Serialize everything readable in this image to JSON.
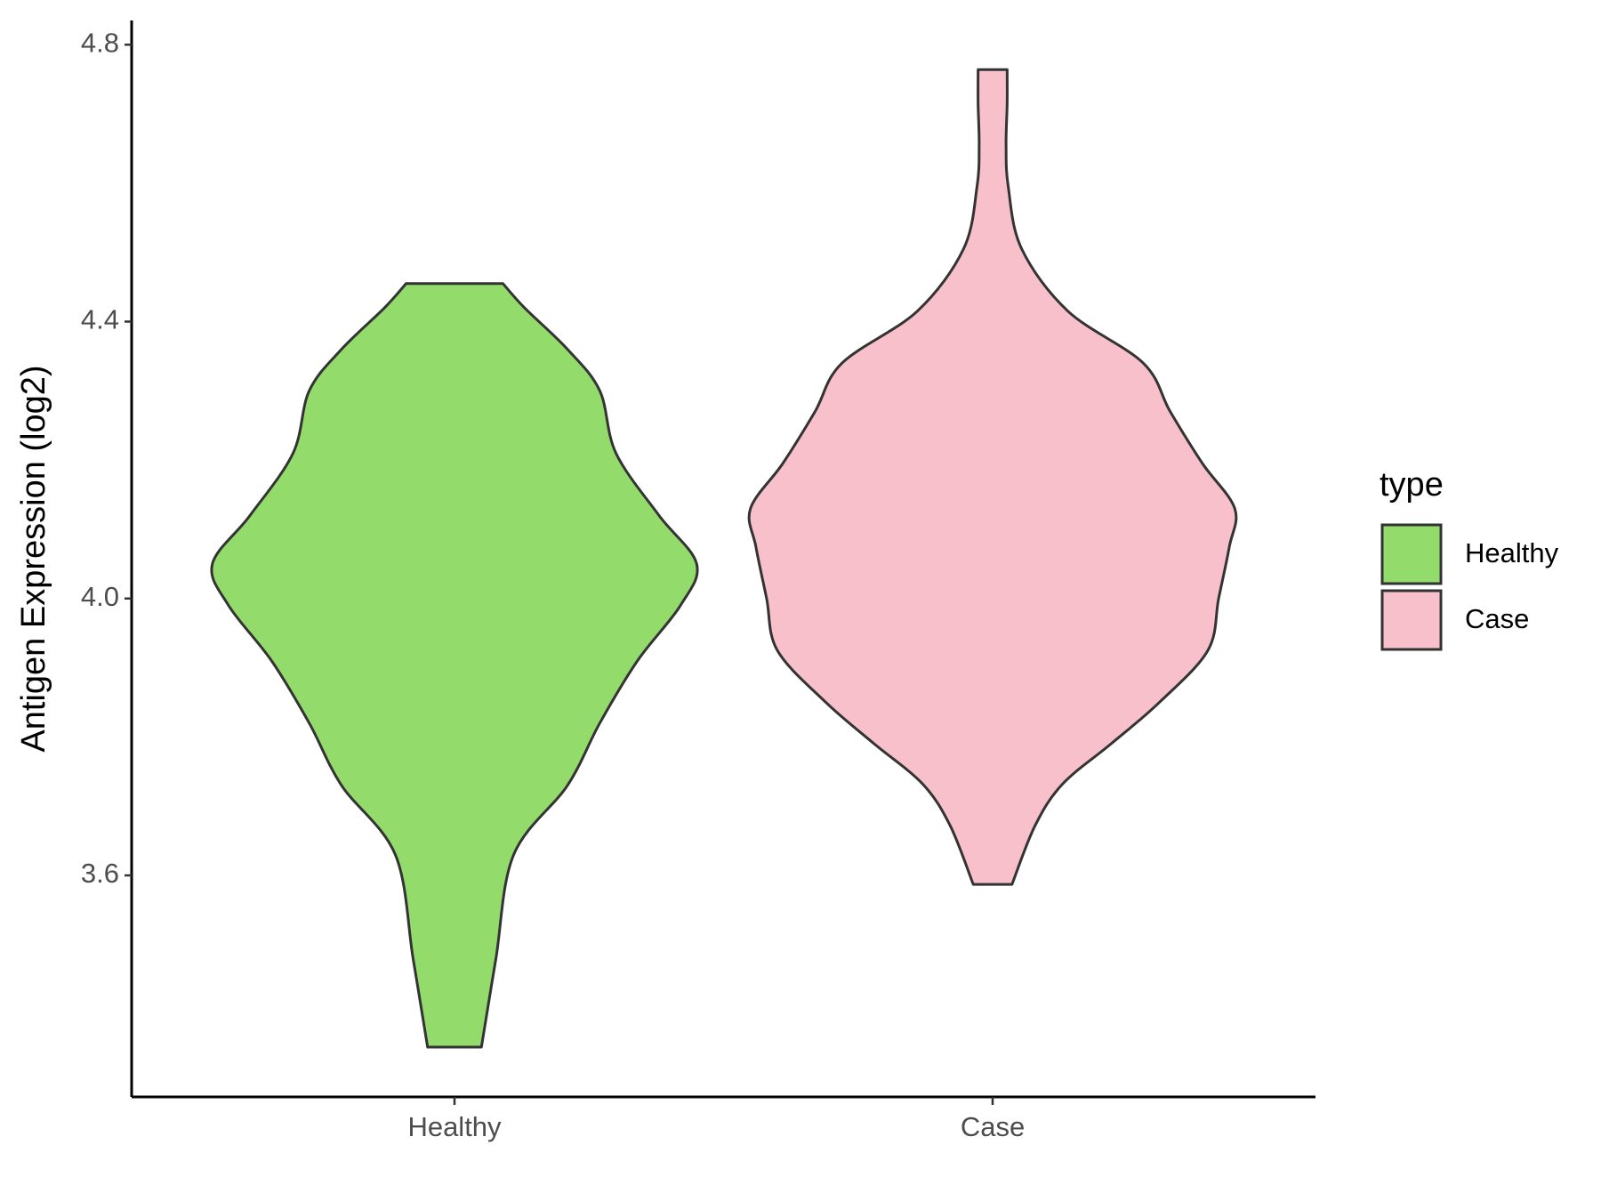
{
  "chart_data": {
    "type": "violin",
    "y_axis_label": "Antigen Expression (log2)",
    "categories": [
      "Healthy",
      "Case"
    ],
    "legend_title": "type",
    "legend_position": "right",
    "ylim": [
      3.28,
      4.835
    ],
    "yticks": [
      {
        "value": 3.6,
        "label": "3.6"
      },
      {
        "value": 4.0,
        "label": "4.0"
      },
      {
        "value": 4.4,
        "label": "4.4"
      },
      {
        "value": 4.8,
        "label": "4.8"
      }
    ],
    "series": [
      {
        "name": "Healthy",
        "color": "#93dc6b",
        "y": [
          3.352,
          3.48,
          3.63,
          3.73,
          3.82,
          3.91,
          3.99,
          4.05,
          4.12,
          4.21,
          4.3,
          4.36,
          4.42,
          4.455
        ],
        "width": [
          0.05,
          0.077,
          0.11,
          0.21,
          0.27,
          0.34,
          0.42,
          0.45,
          0.38,
          0.3,
          0.27,
          0.21,
          0.13,
          0.09
        ]
      },
      {
        "name": "Case",
        "color": "#f7c0cb",
        "y": [
          3.587,
          3.672,
          3.732,
          3.79,
          3.85,
          3.925,
          4.0,
          4.075,
          4.13,
          4.195,
          4.27,
          4.34,
          4.415,
          4.505,
          4.595,
          4.655,
          4.715,
          4.764
        ],
        "width": [
          0.036,
          0.079,
          0.13,
          0.22,
          0.31,
          0.4,
          0.42,
          0.44,
          0.45,
          0.39,
          0.33,
          0.28,
          0.14,
          0.054,
          0.029,
          0.025,
          0.027,
          0.027
        ]
      }
    ]
  }
}
